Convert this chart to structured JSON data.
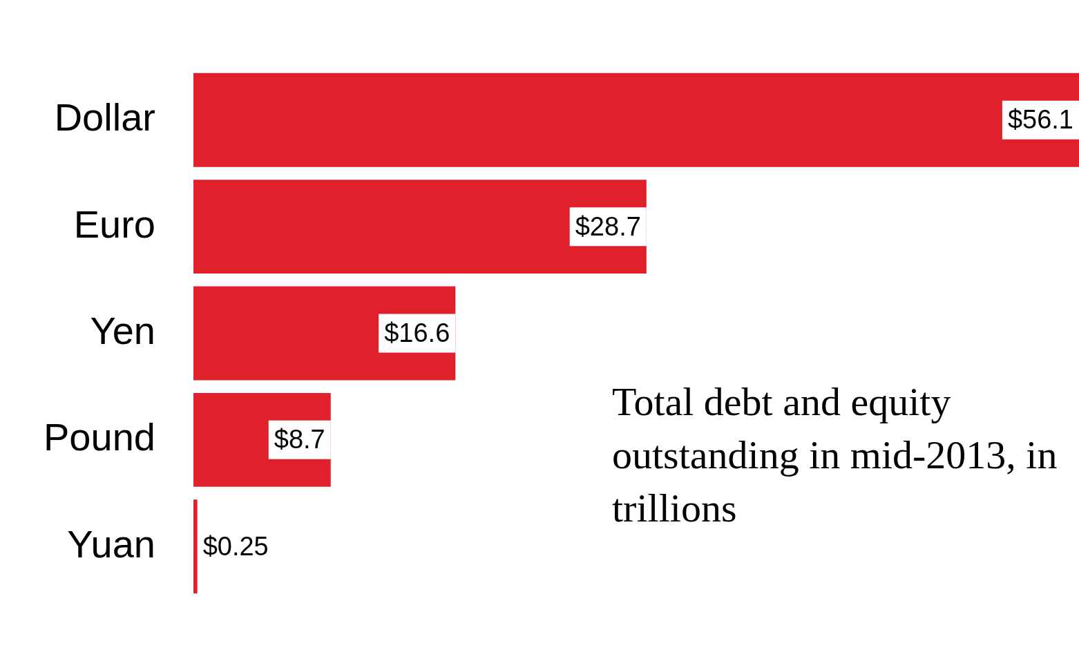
{
  "chart_data": {
    "type": "bar",
    "orientation": "horizontal",
    "title": "Total debt and equity outstanding in mid-2013, in trillions",
    "categories": [
      "Dollar",
      "Euro",
      "Yen",
      "Pound",
      "Yuan"
    ],
    "values": [
      56.1,
      28.7,
      16.6,
      8.7,
      0.25
    ],
    "value_labels": [
      "$56.1",
      "$28.7",
      "$16.6",
      "$8.7",
      "$0.25"
    ],
    "color": "#e0202a",
    "grid": false,
    "legend": false
  }
}
